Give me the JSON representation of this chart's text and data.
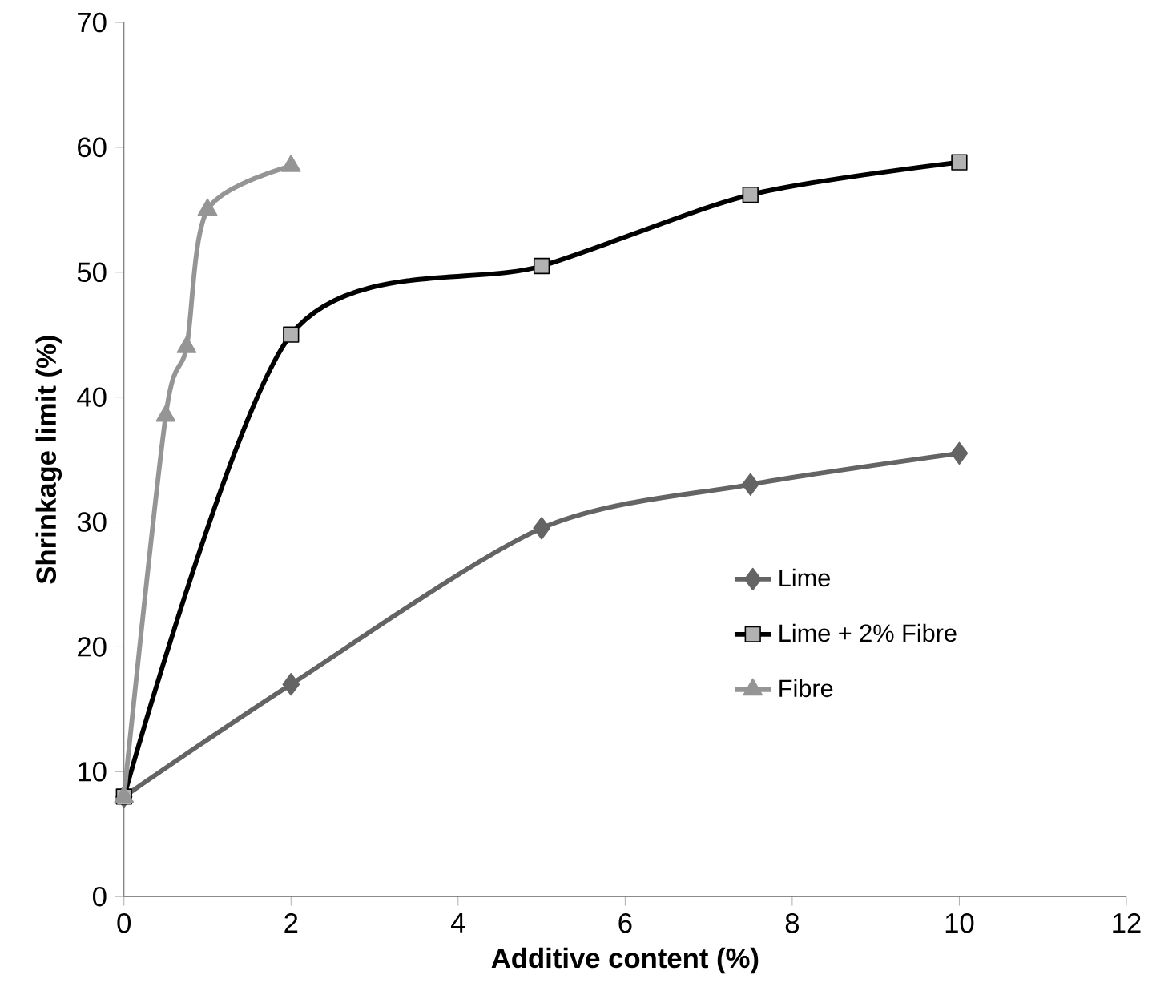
{
  "chart_data": {
    "type": "line",
    "xlabel": "Additive content (%)",
    "ylabel": "Shrinkage limit (%)",
    "xlim": [
      0,
      12
    ],
    "xticks": [
      0,
      2,
      4,
      6,
      8,
      10,
      12
    ],
    "ylim": [
      0,
      70
    ],
    "yticks": [
      0,
      10,
      20,
      30,
      40,
      50,
      60,
      70
    ],
    "grid": false,
    "legend": "right",
    "line_style": "solid",
    "series": [
      {
        "name": "Lime",
        "color": "#646464",
        "marker": "diamond",
        "x": [
          0,
          2,
          5,
          7.5,
          10
        ],
        "values": [
          8,
          17,
          29.5,
          33,
          35.5
        ]
      },
      {
        "name": "Lime + 2% Fibre",
        "color": "#000000",
        "marker": "square",
        "x": [
          0,
          2,
          5,
          7.5,
          10
        ],
        "values": [
          8,
          45,
          50.5,
          56.2,
          58.8
        ]
      },
      {
        "name": "Fibre",
        "color": "#959595",
        "marker": "triangle",
        "x": [
          0,
          0.5,
          0.75,
          1,
          2
        ],
        "values": [
          8,
          38.5,
          44,
          55,
          58.5
        ]
      }
    ]
  }
}
